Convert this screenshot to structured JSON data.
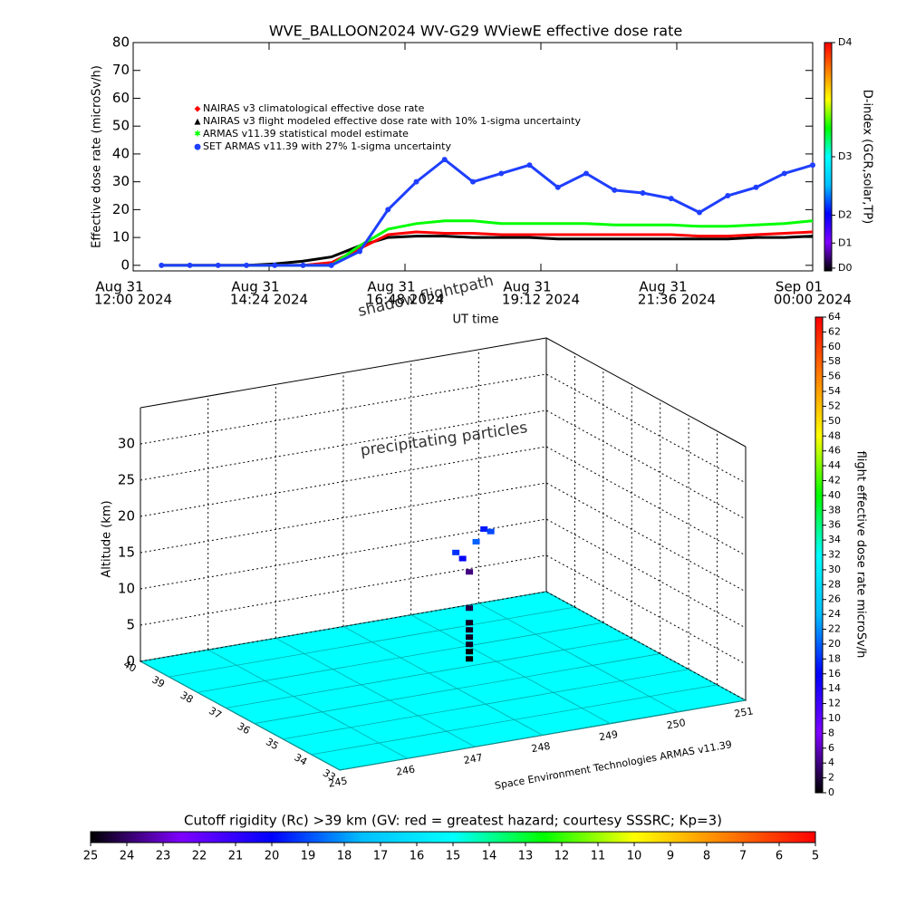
{
  "chart_data": [
    {
      "type": "line",
      "title": "WVE_BALLOON2024 WV-G29 WViewE effective dose rate",
      "x_label": "UT time",
      "y_label": "Effective dose rate (microSv/h)",
      "x": [
        "2024-08-31T12:00",
        "2024-08-31T12:30",
        "2024-08-31T13:00",
        "2024-08-31T13:30",
        "2024-08-31T14:00",
        "2024-08-31T14:30",
        "2024-08-31T15:00",
        "2024-08-31T15:30",
        "2024-08-31T16:00",
        "2024-08-31T16:30",
        "2024-08-31T17:00",
        "2024-08-31T17:30",
        "2024-08-31T18:00",
        "2024-08-31T18:30",
        "2024-08-31T19:00",
        "2024-08-31T19:30",
        "2024-08-31T20:00",
        "2024-08-31T20:30",
        "2024-08-31T21:00",
        "2024-08-31T21:30",
        "2024-08-31T22:00",
        "2024-08-31T22:30",
        "2024-08-31T23:00",
        "2024-08-31T23:30",
        "2024-09-01T00:00"
      ],
      "xlim": [
        "2024-08-31T12:00",
        "2024-09-01T00:00"
      ],
      "xticks": [
        {
          "value": "2024-08-31T12:00",
          "label": [
            "Aug 31",
            "12:00 2024"
          ]
        },
        {
          "value": "2024-08-31T14:24",
          "label": [
            "Aug 31",
            "14:24 2024"
          ]
        },
        {
          "value": "2024-08-31T16:48",
          "label": [
            "Aug 31",
            "16:48 2024"
          ]
        },
        {
          "value": "2024-08-31T19:12",
          "label": [
            "Aug 31",
            "19:12 2024"
          ]
        },
        {
          "value": "2024-08-31T21:36",
          "label": [
            "Aug 31",
            "21:36 2024"
          ]
        },
        {
          "value": "2024-09-01T00:00",
          "label": [
            "Sep 01",
            "00:00 2024"
          ]
        }
      ],
      "ylim": [
        -2,
        80
      ],
      "yticks": [
        0,
        10,
        20,
        30,
        40,
        50,
        60,
        70,
        80
      ],
      "series": [
        {
          "name": "NAIRAS v3 flight modeled effective dose rate with 10% 1-sigma uncertainty",
          "color": "#000000",
          "marker": "triangle",
          "values": [
            null,
            0,
            0,
            0,
            0,
            0.5,
            1.5,
            3,
            7,
            10,
            10.5,
            10.5,
            10,
            10,
            10,
            9.5,
            9.5,
            9.5,
            9.5,
            9.5,
            9.5,
            9.5,
            10,
            10,
            10.5
          ]
        },
        {
          "name": "NAIRAS v3 climatological effective dose rate",
          "color": "#ff0000",
          "marker": "diamond",
          "values": [
            null,
            0,
            0,
            0,
            0,
            0,
            0,
            1,
            6,
            11,
            12,
            11.5,
            11.5,
            11,
            11,
            11,
            11,
            11,
            11,
            11,
            10.5,
            10.5,
            11,
            11.5,
            12
          ]
        },
        {
          "name": "ARMAS v11.39 statistical model estimate",
          "color": "#00ff00",
          "marker": "star",
          "values": [
            null,
            0,
            0,
            0,
            0,
            0,
            0,
            0,
            7,
            13,
            15,
            16,
            16,
            15,
            15,
            15,
            15,
            14.5,
            14.5,
            14.5,
            14,
            14,
            14.5,
            15,
            16
          ]
        },
        {
          "name": "SET ARMAS v11.39 with 27% 1-sigma uncertainty",
          "color": "#1f3fff",
          "marker": "circle",
          "values": [
            null,
            0,
            0,
            0,
            0,
            0,
            0,
            0,
            5,
            20,
            30,
            38,
            30,
            33,
            36,
            28,
            33,
            27,
            26,
            24,
            19,
            25,
            28,
            33,
            36
          ]
        }
      ],
      "legend_order": [
        1,
        0,
        2,
        3
      ],
      "colorbar": {
        "label": "D-index (GCR,solar,TP)",
        "ticks": [
          {
            "value": -1,
            "label": "D0"
          },
          {
            "value": 8,
            "label": "D1"
          },
          {
            "value": 18,
            "label": "D2"
          },
          {
            "value": 39,
            "label": "D3"
          },
          {
            "value": 80,
            "label": "D4"
          }
        ]
      },
      "colormap": [
        "#000000",
        "#7f00ff",
        "#0000ff",
        "#00bfff",
        "#00ffff",
        "#00ff00",
        "#ffff00",
        "#ff8000",
        "#ff0000"
      ]
    },
    {
      "type": "scatter3d",
      "z_label": "Altitude (km)",
      "annotations": [
        "precipitating particles",
        "shadow flightpath",
        "Space Environment Technologies ARMAS v11.39"
      ],
      "xlim": [
        245,
        251
      ],
      "xticks": [
        245,
        246,
        247,
        248,
        249,
        250,
        251
      ],
      "ylim": [
        33,
        40
      ],
      "yticks": [
        33,
        34,
        35,
        36,
        37,
        38,
        39,
        40
      ],
      "zlim": [
        0,
        35
      ],
      "zticks": [
        0,
        5,
        10,
        15,
        20,
        25,
        30
      ],
      "points": {
        "lon": [
          248.6,
          248.6,
          248.6,
          248.6,
          248.6,
          248.6,
          248.6,
          248.6,
          248.5,
          248.4,
          248.7,
          248.9,
          249.0
        ],
        "lat": [
          37,
          37,
          37,
          37,
          37,
          37,
          37,
          37,
          37,
          37,
          37,
          37.2,
          37.2
        ],
        "alt": [
          1,
          2,
          3,
          4,
          5,
          6,
          8,
          13,
          15,
          16,
          17,
          18,
          17.5
        ],
        "dose": [
          0,
          0,
          1,
          1,
          1,
          1,
          2,
          4,
          16,
          18,
          20,
          17,
          19
        ]
      },
      "colorbar": {
        "label": "flight effective dose rate microSv/h",
        "clim": [
          0,
          64
        ],
        "ticks": [
          0,
          2,
          4,
          6,
          8,
          10,
          12,
          14,
          16,
          18,
          20,
          22,
          24,
          26,
          28,
          30,
          32,
          34,
          36,
          38,
          40,
          42,
          44,
          46,
          48,
          50,
          52,
          54,
          56,
          58,
          60,
          62,
          64
        ]
      },
      "floor_color": "#00ffff",
      "colormap": [
        "#000000",
        "#7f00ff",
        "#0000ff",
        "#00bfff",
        "#00ffff",
        "#00ff00",
        "#ffff00",
        "#ff8000",
        "#ff0000"
      ]
    },
    {
      "type": "colorbar",
      "label": "Cutoff rigidity (Rc) >39 km (GV: red = greatest hazard; courtesy SSSRC; Kp=3)",
      "clim": [
        25,
        5
      ],
      "ticks": [
        25,
        24,
        23,
        22,
        21,
        20,
        19,
        18,
        17,
        16,
        15,
        14,
        13,
        12,
        11,
        10,
        9,
        8,
        7,
        6,
        5
      ],
      "colormap": [
        "#000000",
        "#7f00ff",
        "#0000ff",
        "#00bfff",
        "#00ffff",
        "#00ff00",
        "#ffff00",
        "#ff8000",
        "#ff0000"
      ]
    }
  ]
}
